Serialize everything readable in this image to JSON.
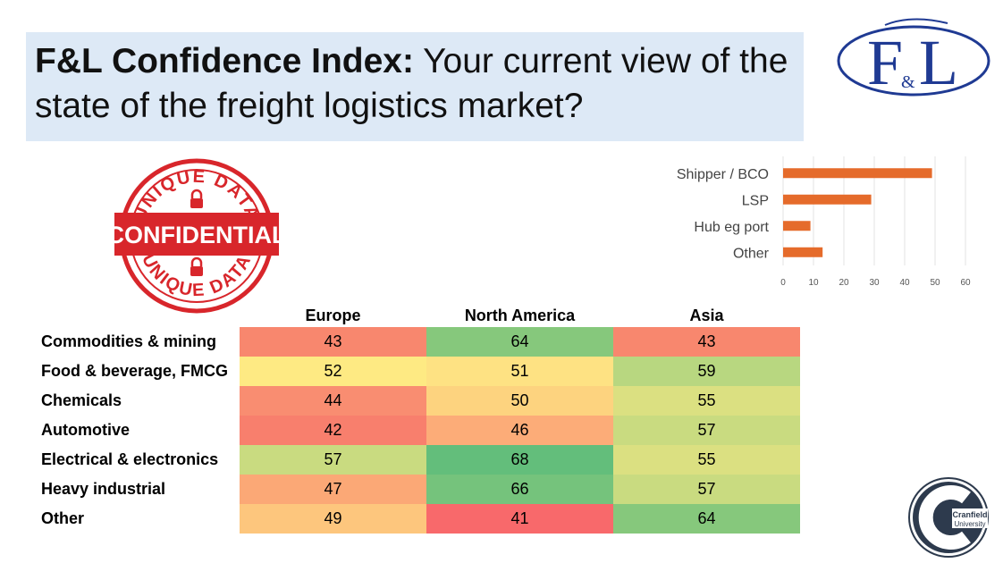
{
  "title": {
    "bold": "F&L Confidence Index:",
    "rest": " Your current view of the state of the freight logistics market?"
  },
  "logo": {
    "main": "F",
    "amp": "&",
    "tail": "L"
  },
  "stamp": {
    "top": "UNIQUE DATA",
    "center": "CONFIDENTIAL",
    "bottom": "UNIQUE DATA"
  },
  "cranfield": {
    "line1": "Cranfield",
    "line2": "University"
  },
  "chart_data": [
    {
      "type": "bar",
      "orientation": "horizontal",
      "categories": [
        "Shipper / BCO",
        "LSP",
        "Hub eg port",
        "Other"
      ],
      "values": [
        49,
        29,
        9,
        13
      ],
      "xlim": [
        0,
        60
      ],
      "xticks": [
        0,
        10,
        20,
        30,
        40,
        50,
        60
      ],
      "color": "#e56b2b",
      "grid": true
    },
    {
      "type": "heatmap",
      "columns": [
        "Europe",
        "North America",
        "Asia"
      ],
      "rows": [
        "Commodities & mining",
        "Food & beverage, FMCG",
        "Chemicals",
        "Automotive",
        "Electrical & electronics",
        "Heavy industrial",
        "Other"
      ],
      "values": [
        [
          43,
          64,
          43
        ],
        [
          52,
          51,
          59
        ],
        [
          44,
          50,
          55
        ],
        [
          42,
          46,
          57
        ],
        [
          57,
          68,
          55
        ],
        [
          47,
          66,
          57
        ],
        [
          49,
          41,
          64
        ]
      ],
      "colors": [
        [
          "#f8876e",
          "#86c87c",
          "#f8876e"
        ],
        [
          "#feea83",
          "#fee283",
          "#b8d780"
        ],
        [
          "#f98d71",
          "#fdd37f",
          "#dbe081"
        ],
        [
          "#f87f6d",
          "#fcac78",
          "#c9db80"
        ],
        [
          "#c9db80",
          "#63be7b",
          "#dbe081"
        ],
        [
          "#fba876",
          "#75c37c",
          "#c9db80"
        ],
        [
          "#fdc67d",
          "#f8696b",
          "#86c87c"
        ]
      ]
    }
  ]
}
